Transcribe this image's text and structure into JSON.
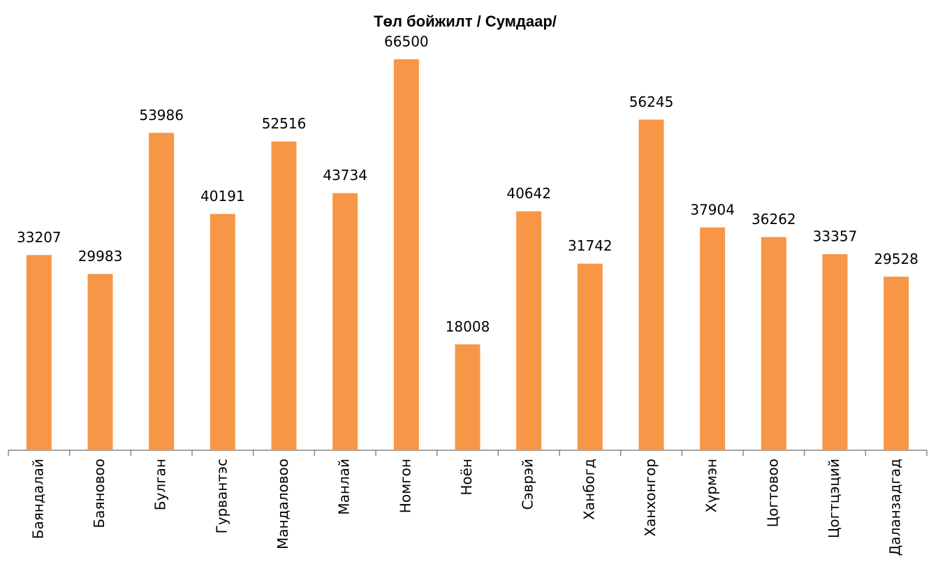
{
  "chart_data": {
    "type": "bar",
    "title": "Төл бойжилт / Сумдаар/",
    "categories": [
      "Баяндалай",
      "Баяновоо",
      "Булган",
      "Гурвантэс",
      "Мандаловоо",
      "Манлай",
      "Номгон",
      "Ноён",
      "Сэврэй",
      "Ханбогд",
      "Ханхонгор",
      "Хүрмэн",
      "Цогтовоо",
      "Цогтцэций",
      "Даланзадгад"
    ],
    "values": [
      33207,
      29983,
      53986,
      40191,
      52516,
      43734,
      66500,
      18008,
      40642,
      31742,
      56245,
      37904,
      36262,
      33357,
      29528
    ],
    "color": "#f79646",
    "ylim": [
      0,
      70000
    ]
  }
}
